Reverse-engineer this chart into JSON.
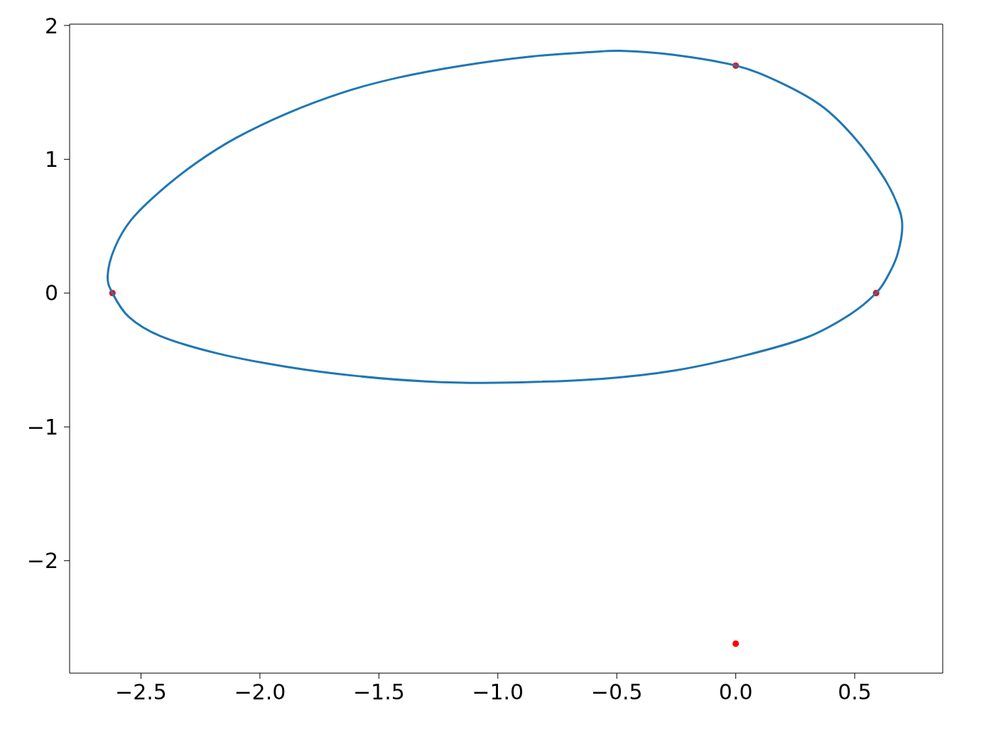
{
  "chart_data": {
    "type": "scatter",
    "xlim": [
      -2.8,
      0.87
    ],
    "ylim": [
      -2.84,
      2.01
    ],
    "xticks": [
      {
        "value": -2.5,
        "label": "−2.5"
      },
      {
        "value": -2.0,
        "label": "−2.0"
      },
      {
        "value": -1.5,
        "label": "−1.5"
      },
      {
        "value": -1.0,
        "label": "−1.0"
      },
      {
        "value": -0.5,
        "label": "−0.5"
      },
      {
        "value": 0,
        "label": "0.0"
      },
      {
        "value": 0.5,
        "label": "0.5"
      }
    ],
    "yticks": [
      {
        "value": -2,
        "label": "−2"
      },
      {
        "value": -1,
        "label": "−1"
      },
      0,
      1,
      2
    ],
    "series": [
      {
        "color": "#ff0000",
        "marker": "circle",
        "x": [
          -2.62,
          0,
          0.59,
          0
        ],
        "values": [
          0,
          1.7,
          0,
          -2.62
        ]
      }
    ]
  }
}
